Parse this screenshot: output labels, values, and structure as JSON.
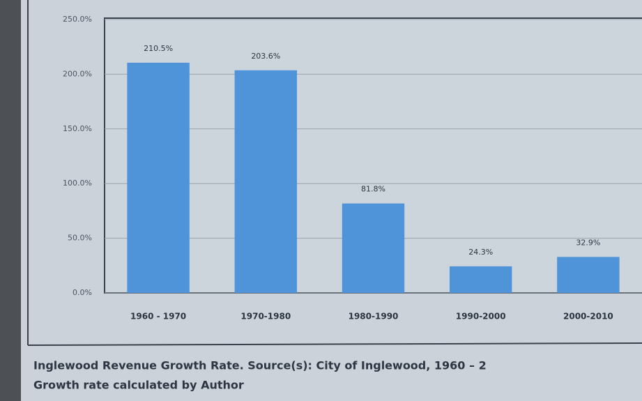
{
  "chart_data": {
    "type": "bar",
    "categories": [
      "1960 - 1970",
      "1970-1980",
      "1980-1990",
      "1990-2000",
      "2000-2010"
    ],
    "values": [
      210.5,
      203.6,
      81.8,
      24.3,
      32.9
    ],
    "value_labels": [
      "210.5%",
      "203.6%",
      "81.8%",
      "24.3%",
      "32.9%"
    ],
    "color": "#4f93d8",
    "ylim": [
      0,
      250
    ],
    "yticks": [
      {
        "value": 0,
        "label": "0.0%"
      },
      {
        "value": 50,
        "label": "50.0%"
      },
      {
        "value": 100,
        "label": "100.0%"
      },
      {
        "value": 150,
        "label": "150.0%"
      },
      {
        "value": 200,
        "label": "200.0%"
      },
      {
        "value": 250,
        "label": "250.0%"
      }
    ],
    "grid": true,
    "caption": [
      "Inglewood Revenue Growth Rate.  Source(s):  City of Inglewood, 1960 – 2",
      "Growth rate calculated by Author"
    ]
  }
}
